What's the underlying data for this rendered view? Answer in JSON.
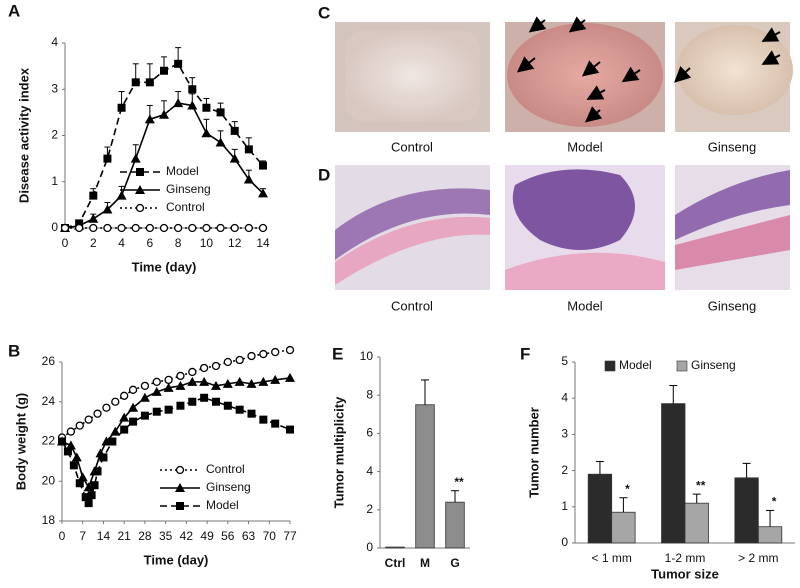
{
  "chart_data": [
    {
      "label": "A",
      "type": "line",
      "xlabel": "Time (day)",
      "ylabel": "Disease activity index",
      "x": [
        0,
        1,
        2,
        3,
        4,
        5,
        6,
        7,
        8,
        9,
        10,
        11,
        12,
        13,
        14
      ],
      "xlim": [
        0,
        14
      ],
      "ylim": [
        0,
        4
      ],
      "xticks": [
        0,
        2,
        4,
        6,
        8,
        10,
        12,
        14
      ],
      "yticks": [
        0,
        1,
        2,
        3,
        4
      ],
      "grid": false,
      "legend": "lower right",
      "series": [
        {
          "name": "Model",
          "color": "#000000",
          "marker": "square",
          "dash": "dashed",
          "values": [
            0,
            0.1,
            0.7,
            1.5,
            2.6,
            3.15,
            3.15,
            3.4,
            3.55,
            3.0,
            2.6,
            2.5,
            2.1,
            1.7,
            1.35
          ],
          "errors": [
            0,
            0.05,
            0.15,
            0.25,
            0.35,
            0.4,
            0.4,
            0.3,
            0.35,
            0.25,
            0.2,
            0.2,
            0.2,
            0.25,
            0.1
          ]
        },
        {
          "name": "Ginseng",
          "color": "#000000",
          "marker": "triangle",
          "dash": "solid",
          "values": [
            0,
            0.05,
            0.2,
            0.4,
            0.7,
            1.5,
            2.35,
            2.45,
            2.7,
            2.65,
            2.05,
            1.85,
            1.5,
            1.05,
            0.75
          ],
          "errors": [
            0,
            0.05,
            0.1,
            0.15,
            0.2,
            0.3,
            0.3,
            0.3,
            0.25,
            0.25,
            0.3,
            0.25,
            0.2,
            0.2,
            0.1
          ]
        },
        {
          "name": "Control",
          "color": "#000000",
          "marker": "circle",
          "dash": "dotted",
          "values": [
            0,
            0,
            0,
            0,
            0,
            0,
            0,
            0,
            0,
            0,
            0,
            0,
            0,
            0,
            0
          ]
        }
      ]
    },
    {
      "label": "B",
      "type": "line",
      "xlabel": "Time (day)",
      "ylabel": "Body weight (g)",
      "xlim": [
        0,
        77
      ],
      "ylim": [
        18,
        26
      ],
      "xticks": [
        0,
        7,
        14,
        21,
        28,
        35,
        42,
        49,
        56,
        63,
        70,
        77
      ],
      "yticks": [
        18,
        20,
        22,
        24,
        26
      ],
      "grid": false,
      "legend": "lower right",
      "series": [
        {
          "name": "Control",
          "color": "#000000",
          "marker": "circle",
          "dash": "dotted",
          "x": [
            0,
            3,
            6,
            9,
            12,
            15,
            18,
            21,
            24,
            28,
            32,
            36,
            40,
            44,
            48,
            52,
            56,
            60,
            64,
            68,
            72,
            77
          ],
          "values": [
            22.2,
            22.5,
            22.8,
            23.1,
            23.4,
            23.7,
            24.0,
            24.3,
            24.6,
            24.8,
            25.0,
            25.1,
            25.3,
            25.5,
            25.7,
            25.8,
            26.0,
            26.1,
            26.3,
            26.4,
            26.5,
            26.6
          ]
        },
        {
          "name": "Ginseng",
          "color": "#000000",
          "marker": "triangle",
          "dash": "solid",
          "x": [
            0,
            3,
            5,
            7,
            9,
            11,
            13,
            15,
            18,
            21,
            24,
            28,
            32,
            36,
            40,
            44,
            48,
            52,
            56,
            60,
            64,
            68,
            72,
            77
          ],
          "values": [
            22.0,
            21.8,
            21.2,
            20.2,
            19.7,
            20.5,
            21.4,
            22.0,
            22.5,
            23.2,
            23.7,
            24.2,
            24.5,
            24.7,
            24.8,
            25.0,
            25.0,
            24.8,
            24.9,
            25.0,
            24.9,
            25.0,
            25.1,
            25.2
          ]
        },
        {
          "name": "Model",
          "color": "#000000",
          "marker": "square",
          "dash": "dashed",
          "x": [
            0,
            2,
            4,
            6,
            8,
            9,
            10,
            11,
            12,
            14,
            17,
            21,
            24,
            28,
            32,
            36,
            40,
            44,
            48,
            52,
            56,
            60,
            64,
            68,
            72,
            77
          ],
          "values": [
            22.0,
            21.5,
            20.8,
            19.9,
            19.2,
            18.9,
            19.3,
            19.8,
            20.5,
            21.2,
            22.0,
            22.6,
            23.0,
            23.3,
            23.5,
            23.6,
            23.8,
            24.0,
            24.2,
            24.0,
            23.8,
            23.6,
            23.4,
            23.1,
            22.9,
            22.6
          ]
        }
      ]
    },
    {
      "label": "E",
      "type": "bar",
      "ylabel": "Tumor multiplicity",
      "categories": [
        "Ctrl",
        "M",
        "G"
      ],
      "values": [
        0.05,
        7.5,
        2.4
      ],
      "errors": [
        0,
        1.3,
        0.6
      ],
      "annotations": [
        null,
        null,
        "**"
      ],
      "color": "#8c8c8c",
      "ylim": [
        0,
        10
      ],
      "yticks": [
        0,
        2,
        4,
        6,
        8,
        10
      ],
      "grid": false
    },
    {
      "label": "F",
      "type": "grouped-bar",
      "xlabel": "Tumor size",
      "ylabel": "Tumor number",
      "categories": [
        "< 1 mm",
        "1-2 mm",
        "> 2 mm"
      ],
      "ylim": [
        0,
        5
      ],
      "yticks": [
        0,
        1,
        2,
        3,
        4,
        5
      ],
      "grid": false,
      "legend": "top",
      "series": [
        {
          "name": "Model",
          "color": "#2b2b2b",
          "values": [
            1.9,
            3.85,
            1.8
          ],
          "errors": [
            0.35,
            0.5,
            0.4
          ]
        },
        {
          "name": "Ginseng",
          "color": "#a6a6a6",
          "values": [
            0.85,
            1.1,
            0.45
          ],
          "errors": [
            0.4,
            0.25,
            0.45
          ],
          "annotations": [
            "*",
            "**",
            "*"
          ]
        }
      ]
    }
  ],
  "images": [
    {
      "label": "C",
      "captions": [
        "Control",
        "Model",
        "Ginseng"
      ]
    },
    {
      "label": "D",
      "captions": [
        "Control",
        "Model",
        "Ginseng"
      ]
    }
  ]
}
